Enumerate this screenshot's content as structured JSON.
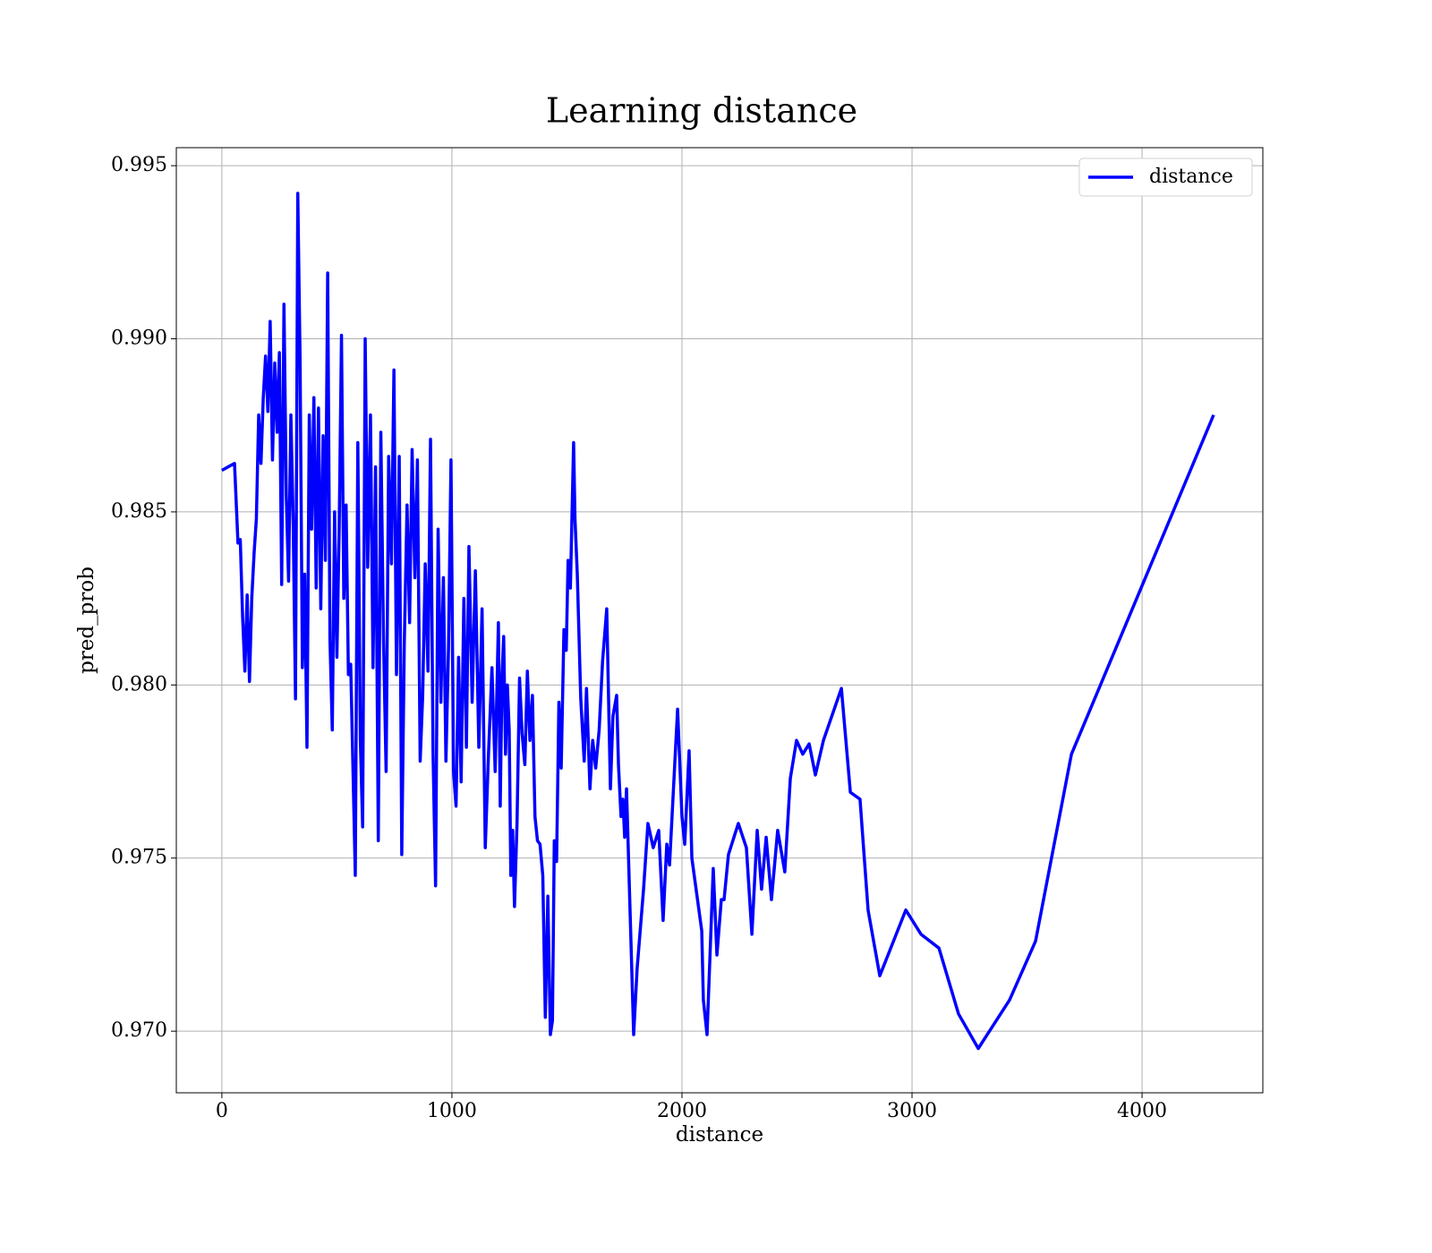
{
  "chart_data": {
    "type": "line",
    "title": "Learning distance",
    "xlabel": "distance",
    "ylabel": "pred_prob",
    "x": [
      0,
      55,
      70,
      80,
      90,
      100,
      110,
      120,
      130,
      140,
      150,
      160,
      170,
      180,
      190,
      200,
      210,
      220,
      230,
      240,
      250,
      260,
      270,
      280,
      290,
      300,
      310,
      320,
      330,
      340,
      350,
      360,
      370,
      380,
      390,
      400,
      410,
      420,
      430,
      440,
      450,
      460,
      470,
      480,
      490,
      500,
      510,
      520,
      530,
      540,
      550,
      560,
      580,
      591,
      602,
      612,
      623,
      634,
      646,
      657,
      668,
      680,
      691,
      703,
      714,
      725,
      737,
      748,
      759,
      771,
      782,
      793,
      805,
      816,
      827,
      839,
      850,
      862,
      873,
      884,
      896,
      907,
      918,
      929,
      940,
      952,
      963,
      974,
      985,
      996,
      1007,
      1018,
      1029,
      1040,
      1052,
      1063,
      1074,
      1088,
      1102,
      1117,
      1131,
      1145,
      1159,
      1174,
      1188,
      1202,
      1210,
      1218,
      1225,
      1233,
      1241,
      1249,
      1256,
      1264,
      1272,
      1283,
      1294,
      1305,
      1317,
      1328,
      1339,
      1350,
      1361,
      1372,
      1383,
      1395,
      1406,
      1417,
      1428,
      1437,
      1445,
      1455,
      1465,
      1475,
      1487,
      1497,
      1505,
      1515,
      1529,
      1535,
      1545,
      1560,
      1575,
      1585,
      1600,
      1612,
      1625,
      1640,
      1655,
      1673,
      1689,
      1700,
      1716,
      1724,
      1735,
      1743,
      1751,
      1759,
      1790,
      1805,
      1833,
      1852,
      1875,
      1899,
      1918,
      1934,
      1946,
      1981,
      2000,
      2012,
      2031,
      2043,
      2086,
      2093,
      2109,
      2136,
      2152,
      2171,
      2183,
      2202,
      2245,
      2280,
      2304,
      2327,
      2346,
      2366,
      2389,
      2416,
      2447,
      2471,
      2498,
      2525,
      2553,
      2580,
      2615,
      2693,
      2732,
      2774,
      2809,
      2860,
      2973,
      3039,
      3117,
      3202,
      3288,
      3424,
      3537,
      3693,
      4311
    ],
    "series": [
      {
        "name": "distance",
        "color": "#0000ff",
        "values": [
          0.9862,
          0.9864,
          0.9841,
          0.9842,
          0.982,
          0.9804,
          0.9826,
          0.9801,
          0.9825,
          0.9838,
          0.9848,
          0.9878,
          0.9864,
          0.9883,
          0.9895,
          0.9879,
          0.9905,
          0.9865,
          0.9893,
          0.9873,
          0.9896,
          0.9829,
          0.991,
          0.9855,
          0.983,
          0.9878,
          0.9847,
          0.9796,
          0.9942,
          0.9894,
          0.9805,
          0.9832,
          0.9782,
          0.9878,
          0.9845,
          0.9883,
          0.9828,
          0.988,
          0.9822,
          0.9872,
          0.9836,
          0.9919,
          0.9813,
          0.9787,
          0.985,
          0.9808,
          0.9845,
          0.9901,
          0.9825,
          0.9852,
          0.9803,
          0.9806,
          0.9745,
          0.987,
          0.9784,
          0.9759,
          0.99,
          0.9834,
          0.9878,
          0.9805,
          0.9863,
          0.9755,
          0.9873,
          0.9812,
          0.9775,
          0.9866,
          0.9835,
          0.9891,
          0.9803,
          0.9866,
          0.9751,
          0.9812,
          0.9852,
          0.9818,
          0.9868,
          0.9831,
          0.9865,
          0.9778,
          0.9797,
          0.9835,
          0.9804,
          0.9871,
          0.978,
          0.9742,
          0.9845,
          0.9795,
          0.9831,
          0.9778,
          0.981,
          0.9865,
          0.9775,
          0.9765,
          0.9808,
          0.9772,
          0.9825,
          0.9782,
          0.984,
          0.9795,
          0.9833,
          0.9782,
          0.9822,
          0.9753,
          0.978,
          0.9805,
          0.9775,
          0.9818,
          0.9765,
          0.9803,
          0.9814,
          0.978,
          0.98,
          0.9787,
          0.9745,
          0.9758,
          0.9736,
          0.976,
          0.9802,
          0.9786,
          0.9777,
          0.9804,
          0.9784,
          0.9797,
          0.9762,
          0.9755,
          0.9754,
          0.9745,
          0.9704,
          0.9739,
          0.9699,
          0.9703,
          0.9755,
          0.9749,
          0.9795,
          0.9776,
          0.9816,
          0.981,
          0.9836,
          0.9828,
          0.987,
          0.9848,
          0.9832,
          0.9796,
          0.9778,
          0.9799,
          0.977,
          0.9784,
          0.9776,
          0.9787,
          0.9807,
          0.9822,
          0.977,
          0.9791,
          0.9797,
          0.9777,
          0.9762,
          0.9767,
          0.9756,
          0.977,
          0.9699,
          0.9718,
          0.9741,
          0.976,
          0.9753,
          0.9758,
          0.9732,
          0.9754,
          0.9748,
          0.9793,
          0.9762,
          0.9754,
          0.9781,
          0.975,
          0.9729,
          0.9709,
          0.9699,
          0.9747,
          0.9722,
          0.9738,
          0.9738,
          0.9751,
          0.976,
          0.9753,
          0.9728,
          0.9758,
          0.9741,
          0.9756,
          0.9738,
          0.9758,
          0.9746,
          0.9773,
          0.9784,
          0.978,
          0.9783,
          0.9774,
          0.9784,
          0.9799,
          0.9769,
          0.9767,
          0.9735,
          0.9716,
          0.9735,
          0.9728,
          0.9724,
          0.9705,
          0.9695,
          0.9709,
          0.9726,
          0.978,
          0.9878
        ]
      }
    ],
    "xlim": [
      -198,
      4525
    ],
    "xticks": [
      0,
      1000,
      2000,
      3000,
      4000
    ],
    "ylim": [
      0.96822,
      0.99552
    ],
    "yticks": [
      {
        "value": 0.97,
        "label": "0.970"
      },
      0.975,
      {
        "value": 0.98,
        "label": "0.980"
      },
      0.985,
      {
        "value": 0.99,
        "label": "0.990"
      },
      0.995
    ],
    "grid": true,
    "legend": "upper right"
  }
}
